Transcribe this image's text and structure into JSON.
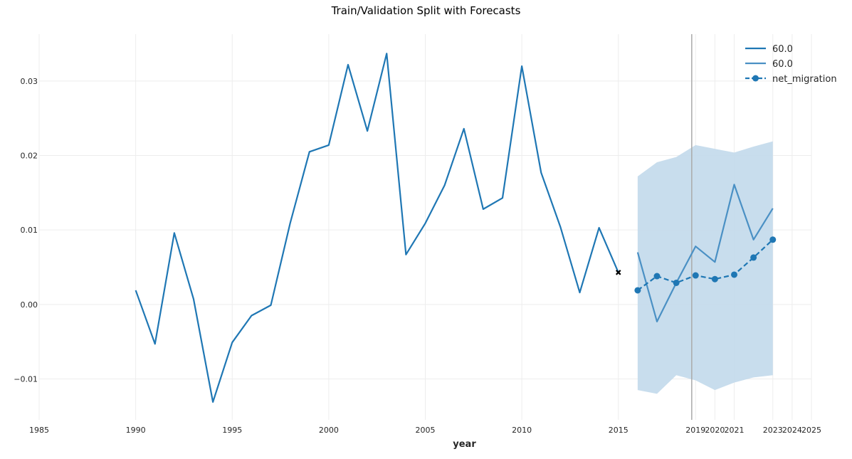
{
  "chart_data": {
    "type": "line",
    "title": "Train/Validation Split with Forecasts",
    "xlabel": "year",
    "ylabel": "",
    "xlim": [
      1985,
      2025
    ],
    "ylim": [
      -0.0155,
      0.0363
    ],
    "grid": true,
    "legend_position": "top-right",
    "xticks": [
      1985,
      1990,
      1995,
      2000,
      2005,
      2010,
      2015,
      2019,
      2020,
      2021,
      2023,
      2024,
      2025
    ],
    "yticks": [
      -0.01,
      0.0,
      0.01,
      0.02,
      0.03
    ],
    "ytick_labels": [
      "−0.01",
      "0.00",
      "0.01",
      "0.02",
      "0.03"
    ],
    "split_line_x": 2018.8,
    "colors": {
      "train": "#1f77b4",
      "forecast": "#4a90c4",
      "band": "#c5dbec",
      "split_line": "#aaaaaa",
      "marker": "#000000",
      "grid": "#ededed"
    },
    "series": [
      {
        "name": "60.0",
        "role": "train",
        "x": [
          1990,
          1991,
          1992,
          1993,
          1994,
          1995,
          1996,
          1997,
          1998,
          1999,
          2000,
          2001,
          2002,
          2003,
          2004,
          2005,
          2006,
          2007,
          2008,
          2009,
          2010,
          2011,
          2012,
          2013,
          2014,
          2015
        ],
        "values": [
          0.0019,
          -0.0053,
          0.0096,
          0.0007,
          -0.0131,
          -0.0051,
          -0.0015,
          -0.0001,
          0.0109,
          0.0205,
          0.0214,
          0.0322,
          0.0233,
          0.0337,
          0.0067,
          0.0109,
          0.016,
          0.0236,
          0.0128,
          0.0143,
          0.032,
          0.0177,
          0.0104,
          0.0016,
          0.0103,
          0.0043
        ]
      },
      {
        "name": "60.0",
        "role": "forecast",
        "x": [
          2016,
          2017,
          2018,
          2019,
          2020,
          2021,
          2022,
          2023
        ],
        "values": [
          0.007,
          -0.0023,
          0.0029,
          0.0078,
          0.0057,
          0.0161,
          0.0087,
          0.0129
        ],
        "band_upper": [
          0.0172,
          0.0191,
          0.0198,
          0.0214,
          0.0209,
          0.0204,
          0.0212,
          0.0219
        ],
        "band_lower": [
          -0.0115,
          -0.012,
          -0.0095,
          -0.0102,
          -0.0115,
          -0.0105,
          -0.0098,
          -0.0095
        ]
      },
      {
        "name": "net_migration",
        "role": "actual",
        "x": [
          2016,
          2017,
          2018,
          2019,
          2020,
          2021,
          2022,
          2023
        ],
        "values": [
          0.0019,
          0.0038,
          0.0029,
          0.0039,
          0.0034,
          0.004,
          0.0063,
          0.0087
        ]
      }
    ],
    "end_marker": {
      "x": 2015,
      "y": 0.0043
    }
  }
}
